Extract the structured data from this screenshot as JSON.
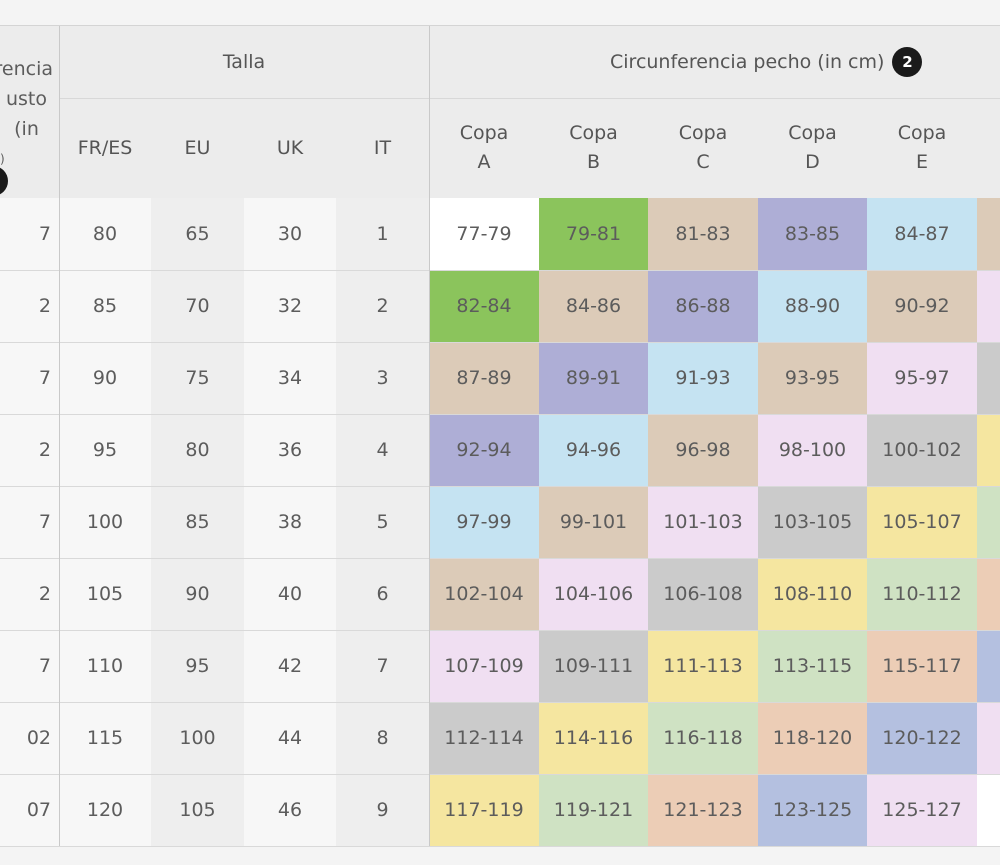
{
  "table": {
    "underbust_header": {
      "line1": "rencia",
      "line2": "usto (in",
      "line3": ")"
    },
    "talla_header": "Talla",
    "chest_header": "Circunferencia pecho (in cm)",
    "chest_badge": "2",
    "size_columns": [
      "FR/ES",
      "EU",
      "UK",
      "IT"
    ],
    "cup_columns": [
      {
        "word": "Copa",
        "letter": "A"
      },
      {
        "word": "Copa",
        "letter": "B"
      },
      {
        "word": "Copa",
        "letter": "C"
      },
      {
        "word": "Copa",
        "letter": "D"
      },
      {
        "word": "Copa",
        "letter": "E"
      }
    ],
    "rows": [
      {
        "underbust": "7",
        "sizes": [
          "80",
          "65",
          "30",
          "1"
        ],
        "cups": [
          "77-79",
          "79-81",
          "81-83",
          "83-85",
          "84-87"
        ]
      },
      {
        "underbust": "2",
        "sizes": [
          "85",
          "70",
          "32",
          "2"
        ],
        "cups": [
          "82-84",
          "84-86",
          "86-88",
          "88-90",
          "90-92"
        ]
      },
      {
        "underbust": "7",
        "sizes": [
          "90",
          "75",
          "34",
          "3"
        ],
        "cups": [
          "87-89",
          "89-91",
          "91-93",
          "93-95",
          "95-97"
        ]
      },
      {
        "underbust": "2",
        "sizes": [
          "95",
          "80",
          "36",
          "4"
        ],
        "cups": [
          "92-94",
          "94-96",
          "96-98",
          "98-100",
          "100-102"
        ]
      },
      {
        "underbust": "7",
        "sizes": [
          "100",
          "85",
          "38",
          "5"
        ],
        "cups": [
          "97-99",
          "99-101",
          "101-103",
          "103-105",
          "105-107"
        ]
      },
      {
        "underbust": "2",
        "sizes": [
          "105",
          "90",
          "40",
          "6"
        ],
        "cups": [
          "102-104",
          "104-106",
          "106-108",
          "108-110",
          "110-112"
        ]
      },
      {
        "underbust": "7",
        "sizes": [
          "110",
          "95",
          "42",
          "7"
        ],
        "cups": [
          "107-109",
          "109-111",
          "111-113",
          "113-115",
          "115-117"
        ]
      },
      {
        "underbust": "02",
        "sizes": [
          "115",
          "100",
          "44",
          "8"
        ],
        "cups": [
          "112-114",
          "114-116",
          "116-118",
          "118-120",
          "120-122"
        ]
      },
      {
        "underbust": "07",
        "sizes": [
          "120",
          "105",
          "46",
          "9"
        ],
        "cups": [
          "117-119",
          "119-121",
          "121-123",
          "123-125",
          "125-127"
        ]
      }
    ]
  },
  "colors": {
    "white": "#ffffff",
    "green": "#8bc45c",
    "tan": "#dccbb8",
    "lavender": "#aeaed6",
    "lightblue": "#c5e3f2",
    "pink": "#f0dff2",
    "gray": "#cbcbcb",
    "yellow": "#f5e6a0",
    "sage": "#cfe2c3",
    "peach": "#eccdb6",
    "blue": "#b4c0e0"
  },
  "cup_color_grid": [
    [
      "white",
      "green",
      "tan",
      "lavender",
      "lightblue",
      "tan"
    ],
    [
      "green",
      "tan",
      "lavender",
      "lightblue",
      "tan",
      "pink"
    ],
    [
      "tan",
      "lavender",
      "lightblue",
      "tan",
      "pink",
      "gray"
    ],
    [
      "lavender",
      "lightblue",
      "tan",
      "pink",
      "gray",
      "yellow"
    ],
    [
      "lightblue",
      "tan",
      "pink",
      "gray",
      "yellow",
      "sage"
    ],
    [
      "tan",
      "pink",
      "gray",
      "yellow",
      "sage",
      "peach"
    ],
    [
      "pink",
      "gray",
      "yellow",
      "sage",
      "peach",
      "blue"
    ],
    [
      "gray",
      "yellow",
      "sage",
      "peach",
      "blue",
      "pink"
    ],
    [
      "yellow",
      "sage",
      "peach",
      "blue",
      "pink",
      "white"
    ]
  ]
}
